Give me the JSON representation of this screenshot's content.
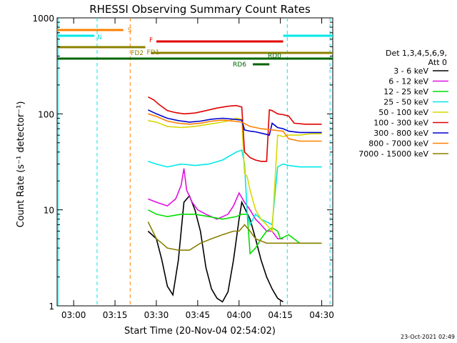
{
  "chart_data": {
    "type": "line",
    "title": "RHESSI Observing Summary Count Rates",
    "xlabel": "Start Time (20-Nov-04 02:54:02)",
    "ylabel": "Count Rate (s⁻¹ detector⁻¹)",
    "y_scale": "log",
    "ylim": [
      1,
      1000
    ],
    "x_unit": "minutes after 02:54:02",
    "xlim": [
      0,
      100
    ],
    "x_ticks": [
      {
        "t": 6,
        "label": "03:00"
      },
      {
        "t": 21,
        "label": "03:15"
      },
      {
        "t": 36,
        "label": "03:30"
      },
      {
        "t": 51,
        "label": "03:45"
      },
      {
        "t": 66,
        "label": "04:00"
      },
      {
        "t": 81,
        "label": "04:15"
      },
      {
        "t": 96,
        "label": "04:30"
      }
    ],
    "y_ticks": [
      {
        "v": 1,
        "label": "1"
      },
      {
        "v": 10,
        "label": "10"
      },
      {
        "v": 100,
        "label": "100"
      },
      {
        "v": 1000,
        "label": "1000"
      }
    ],
    "legend": {
      "header": [
        "Det 1,3,4,5,6,9,",
        "Att 0"
      ],
      "placement": "right"
    },
    "series": [
      {
        "name": "3 - 6 keV",
        "color": "#000000",
        "x": [
          33,
          36,
          38,
          40,
          42,
          44,
          46,
          48,
          50,
          52,
          54,
          56,
          58,
          60,
          62,
          64,
          66,
          67,
          70,
          72,
          74,
          76,
          78,
          80,
          82
        ],
        "y": [
          6,
          5,
          3,
          1.6,
          1.3,
          3,
          12,
          14,
          10,
          6,
          2.5,
          1.5,
          1.2,
          1.1,
          1.4,
          3,
          8,
          12,
          8,
          5,
          3,
          2,
          1.5,
          1.2,
          1.1
        ]
      },
      {
        "name": "6 - 12 keV",
        "color": "#e010e0",
        "x": [
          33,
          36,
          40,
          43,
          45,
          46,
          47,
          49,
          51,
          54,
          58,
          62,
          64,
          66,
          68,
          70,
          72,
          74,
          76,
          78,
          80,
          82
        ],
        "y": [
          13,
          12,
          11,
          13,
          18,
          27,
          16,
          12,
          10,
          9,
          8,
          9,
          11,
          15,
          12,
          10,
          8,
          7,
          6,
          6,
          5,
          5
        ]
      },
      {
        "name": "12 - 25 keV",
        "color": "#00e000",
        "x": [
          33,
          36,
          40,
          45,
          50,
          55,
          60,
          65,
          67,
          69,
          70,
          72,
          74,
          76,
          78,
          80,
          81,
          84,
          88,
          92,
          96
        ],
        "y": [
          10,
          9,
          8.5,
          9,
          9,
          8.5,
          8,
          8.5,
          9,
          9,
          3.5,
          4,
          5,
          6,
          6.5,
          6,
          5,
          5.5,
          4.5,
          4.5,
          4.5
        ]
      },
      {
        "name": "25 - 50 keV",
        "color": "#00e8e8",
        "x": [
          33,
          36,
          40,
          45,
          50,
          55,
          60,
          65,
          67,
          68,
          69,
          70,
          72,
          74,
          76,
          78,
          80,
          82,
          84,
          88,
          92,
          96
        ],
        "y": [
          32,
          30,
          28,
          30,
          29,
          30,
          33,
          40,
          42,
          30,
          9,
          7,
          9,
          8,
          7.5,
          7,
          28,
          30,
          29,
          28,
          28,
          28
        ]
      },
      {
        "name": "50 - 100 keV",
        "color": "#d8d800",
        "x": [
          33,
          36,
          40,
          45,
          50,
          55,
          60,
          63,
          65,
          67,
          68,
          69,
          70,
          72,
          74,
          76,
          78,
          80,
          82,
          84,
          88,
          92,
          96
        ],
        "y": [
          85,
          82,
          74,
          72,
          74,
          78,
          82,
          86,
          90,
          88,
          24,
          22,
          16,
          10,
          8,
          7,
          6,
          60,
          58,
          60,
          60,
          62,
          62
        ]
      },
      {
        "name": "100 - 300 keV",
        "color": "#e00000",
        "x": [
          33,
          35,
          37,
          40,
          43,
          46,
          50,
          54,
          58,
          62,
          65,
          67,
          68,
          70,
          72,
          74,
          76,
          77,
          78,
          80,
          82,
          84,
          86,
          90,
          94,
          96
        ],
        "y": [
          150,
          140,
          125,
          108,
          103,
          100,
          102,
          108,
          115,
          120,
          122,
          118,
          40,
          35,
          33,
          32,
          32,
          110,
          108,
          100,
          98,
          95,
          80,
          78,
          78,
          78
        ]
      },
      {
        "name": "300 - 800 keV",
        "color": "#0000d0",
        "x": [
          33,
          36,
          40,
          44,
          48,
          52,
          56,
          60,
          64,
          67,
          68,
          70,
          72,
          75,
          77,
          78,
          80,
          82,
          84,
          88,
          92,
          96
        ],
        "y": [
          110,
          100,
          90,
          85,
          82,
          84,
          88,
          90,
          88,
          86,
          68,
          66,
          65,
          62,
          60,
          80,
          72,
          70,
          66,
          64,
          64,
          64
        ]
      },
      {
        "name": "800 - 7000 keV",
        "color": "#ff8000",
        "x": [
          33,
          36,
          40,
          44,
          48,
          52,
          56,
          60,
          64,
          67,
          70,
          74,
          78,
          82,
          84,
          88,
          92,
          96
        ],
        "y": [
          100,
          94,
          84,
          80,
          78,
          80,
          84,
          86,
          84,
          82,
          74,
          70,
          68,
          66,
          55,
          52,
          52,
          52
        ]
      },
      {
        "name": "7000 - 15000 keV",
        "color": "#8b8000",
        "x": [
          33,
          36,
          38,
          40,
          44,
          48,
          52,
          56,
          60,
          64,
          66,
          68,
          70,
          72,
          76,
          80,
          84,
          88,
          92,
          96
        ],
        "y": [
          7.5,
          5,
          4.5,
          4,
          3.8,
          3.8,
          4.5,
          5,
          5.5,
          6,
          6,
          7,
          6,
          5,
          4.5,
          4.5,
          4.5,
          4.5,
          4.5,
          4.5
        ]
      }
    ],
    "state_bars": [
      {
        "label": "S",
        "color": "#ff8000",
        "x_start": 0,
        "x_end": 24,
        "y": 1
      },
      {
        "label": "N",
        "color": "#00e8e8",
        "x_start": 0,
        "x_end": 13.5,
        "y": 2
      },
      {
        "label": "N",
        "color": "#00e8e8",
        "x_start": 82,
        "x_end": 100,
        "y": 2,
        "no_text": true
      },
      {
        "label": "F",
        "color": "#e00000",
        "x_start": 36,
        "x_end": 82,
        "y": 3
      },
      {
        "label": "FD1",
        "color": "#8b8000",
        "x_start": 0,
        "x_end": 32,
        "y": 4
      },
      {
        "label": "FD2",
        "color": "#8b8000",
        "x_start": 34,
        "x_end": 100,
        "y": 5
      },
      {
        "label": "RD0",
        "color": "#006400",
        "x_start": 0,
        "x_end": 100,
        "y": 6
      },
      {
        "label": "RD6",
        "color": "#006400",
        "x_start": 71,
        "x_end": 77,
        "y": 7
      }
    ],
    "vertical_markers": [
      {
        "t": 14.5,
        "color": "#00e8e8"
      },
      {
        "t": 26.5,
        "color": "#ff8000"
      },
      {
        "t": 83.5,
        "color": "#00e8e8"
      },
      {
        "t": 99,
        "color": "#00e8e8"
      }
    ]
  },
  "timestamp": "23-Oct-2021 02:49"
}
